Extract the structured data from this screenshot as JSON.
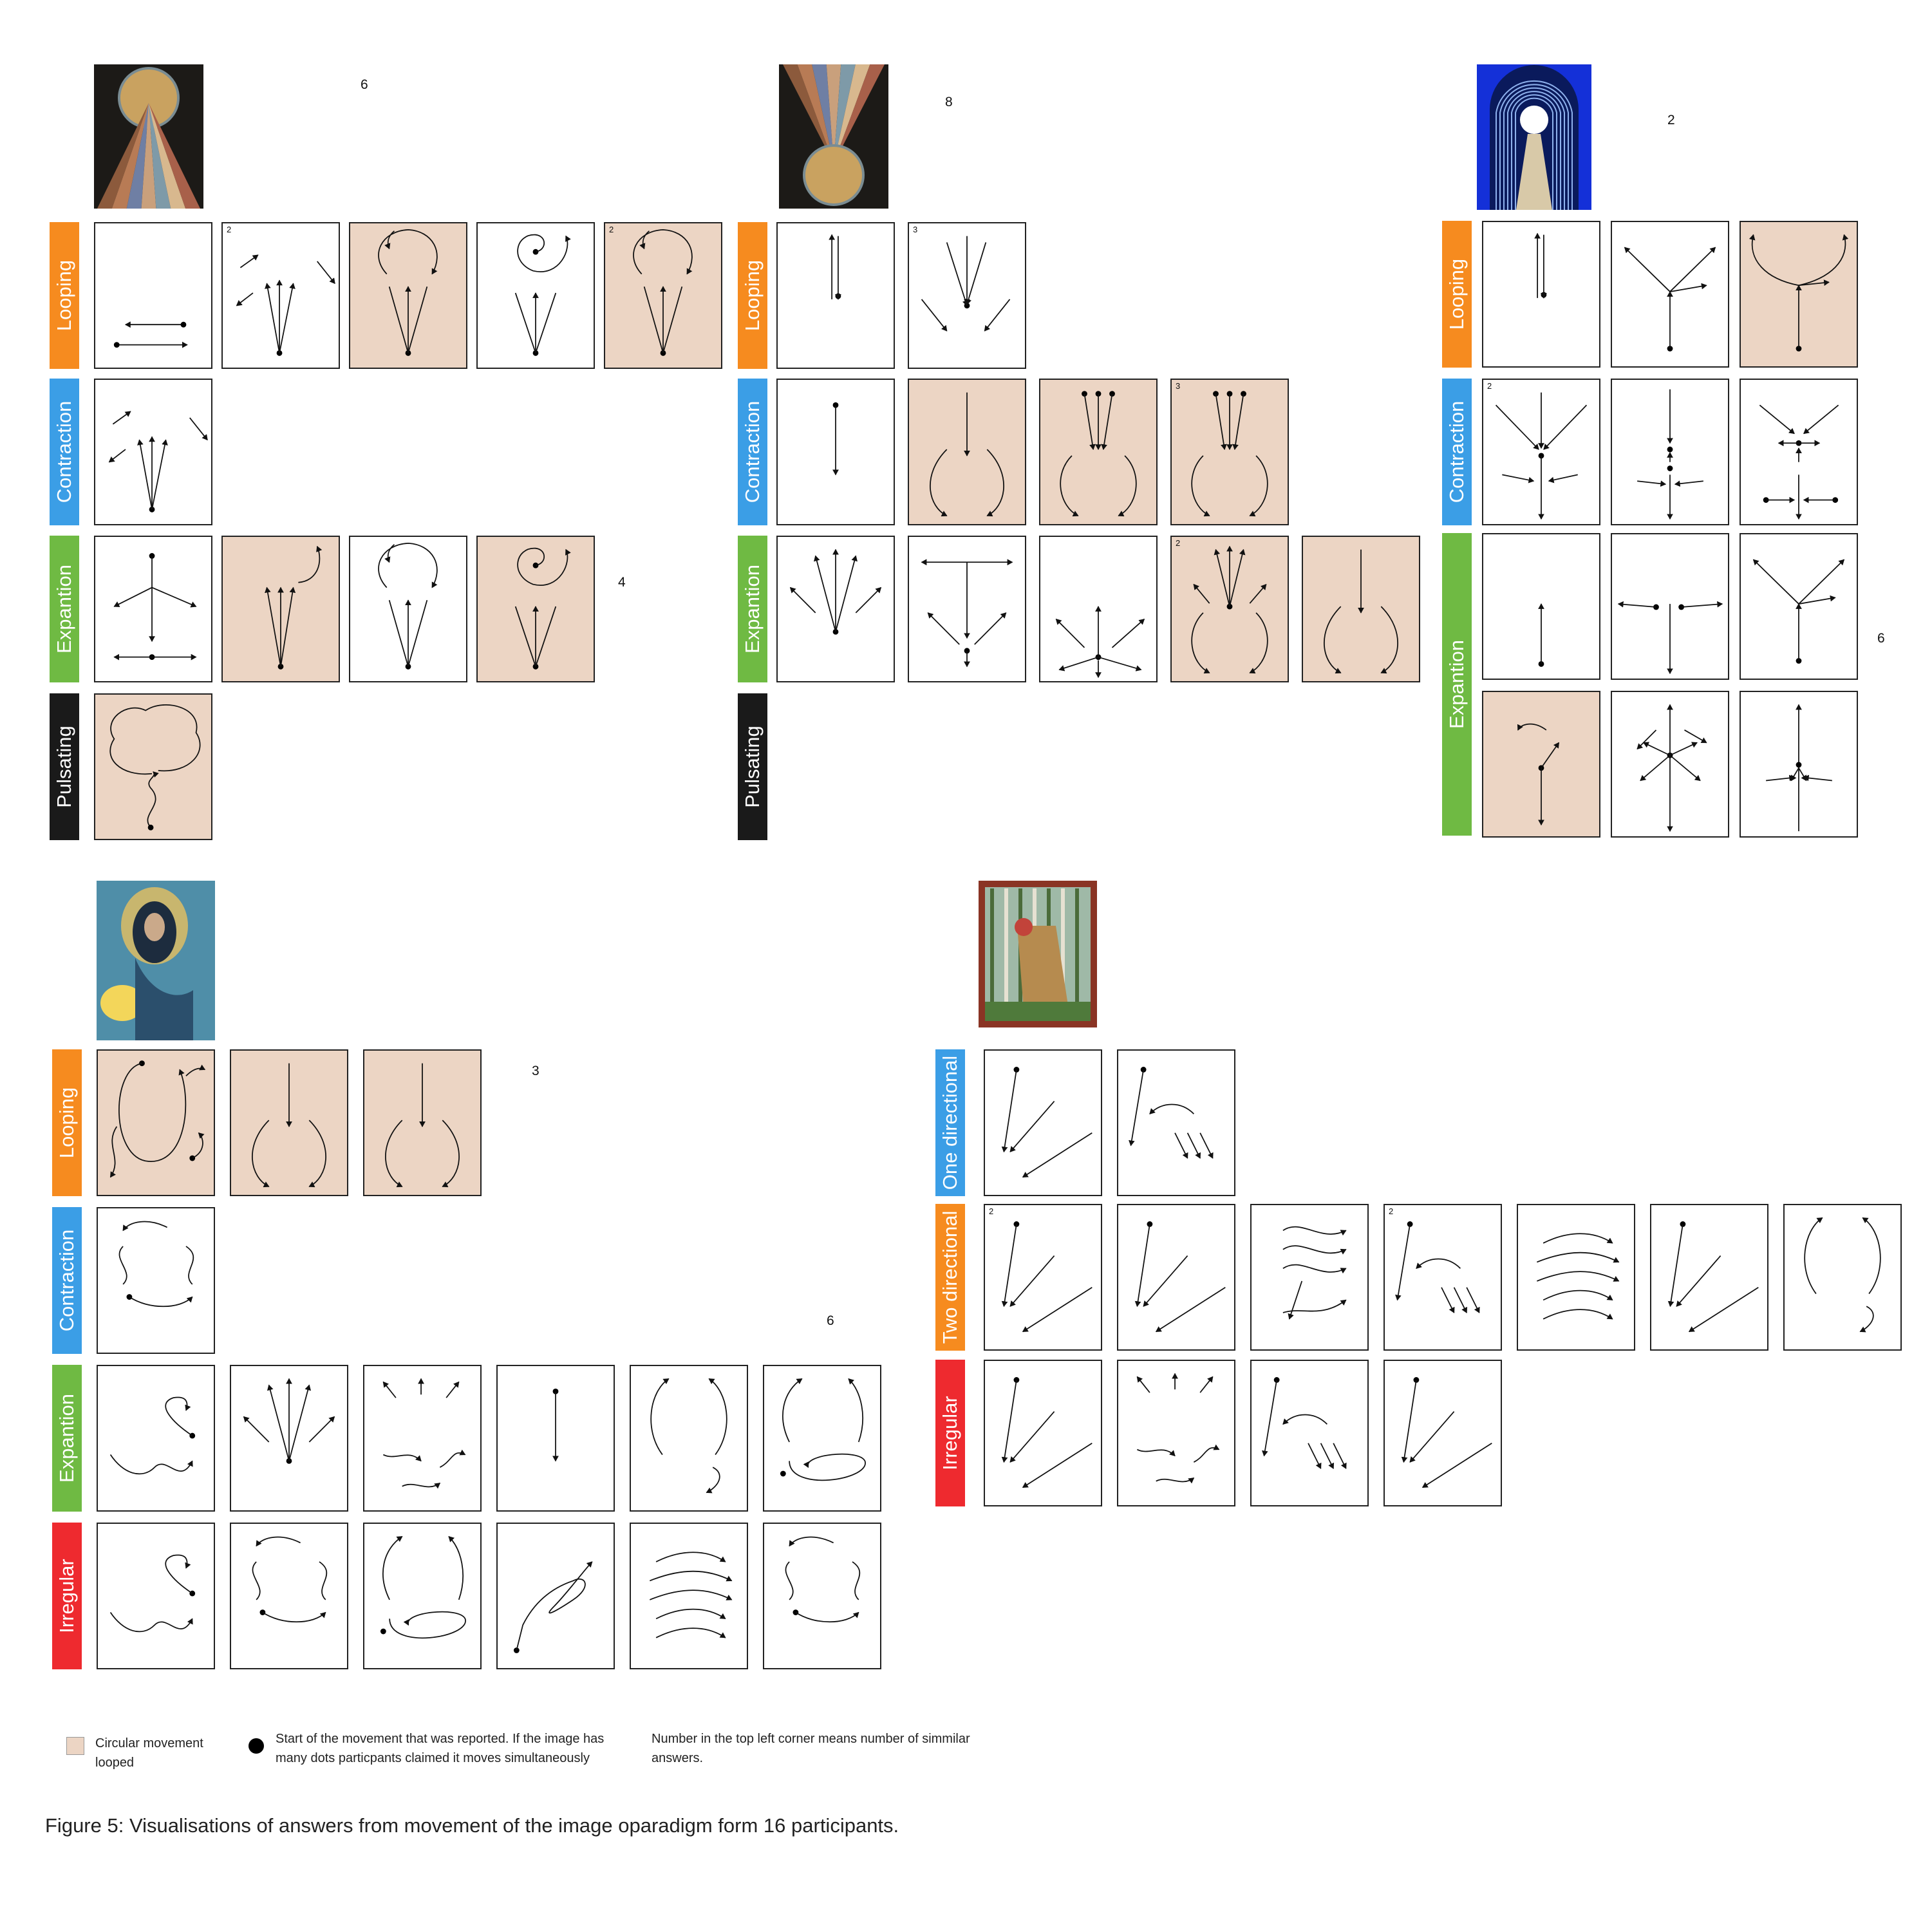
{
  "colors": {
    "Looping": "#f68b1f",
    "Contraction": "#3b9ee6",
    "Expantion": "#6fba43",
    "Pulsating": "#1a1a1a",
    "Irregular": "#ee2a2f",
    "One directional": "#3b9ee6",
    "Two directional": "#f68b1f",
    "looped_fill": "#ecd5c4"
  },
  "groups": [
    {
      "artwork": "pyramid-sun-painting",
      "count": "6",
      "rows": [
        {
          "label": "Looping",
          "cells": [
            {
              "glyph": "two-horizontal-arrows",
              "looped": false,
              "count": ""
            },
            {
              "glyph": "fan-up",
              "looped": false,
              "count": "2"
            },
            {
              "glyph": "fan-with-circle",
              "looped": true,
              "count": ""
            },
            {
              "glyph": "fan-with-spiral",
              "looped": false,
              "count": ""
            },
            {
              "glyph": "fan-with-circle",
              "looped": true,
              "count": "2"
            }
          ]
        },
        {
          "label": "Contraction",
          "cells": [
            {
              "glyph": "fan-up",
              "looped": false,
              "count": ""
            }
          ]
        },
        {
          "label": "Expantion",
          "cells": [
            {
              "glyph": "star-down",
              "looped": false,
              "count": ""
            },
            {
              "glyph": "fan-with-curve",
              "looped": true,
              "count": ""
            },
            {
              "glyph": "fan-with-circle",
              "looped": false,
              "count": ""
            },
            {
              "glyph": "fan-with-spiral",
              "looped": true,
              "count": ""
            }
          ]
        },
        {
          "label": "Pulsating",
          "cells": [
            {
              "glyph": "cloud-shape",
              "looped": true,
              "count": ""
            }
          ]
        }
      ],
      "extra_count": "4"
    },
    {
      "artwork": "inverted-pyramid-painting",
      "count": "8",
      "rows": [
        {
          "label": "Looping",
          "cells": [
            {
              "glyph": "double-vertical",
              "looped": false,
              "count": ""
            },
            {
              "glyph": "fan-down",
              "looped": false,
              "count": "3"
            }
          ]
        },
        {
          "label": "Contraction",
          "cells": [
            {
              "glyph": "single-down",
              "looped": false,
              "count": ""
            },
            {
              "glyph": "down-with-arcs",
              "looped": true,
              "count": ""
            },
            {
              "glyph": "triple-down-arcs",
              "looped": true,
              "count": ""
            },
            {
              "glyph": "triple-down-arcs",
              "looped": true,
              "count": "3"
            }
          ]
        },
        {
          "label": "Expantion",
          "cells": [
            {
              "glyph": "fan-out-up",
              "looped": false,
              "count": ""
            },
            {
              "glyph": "t-shape",
              "looped": false,
              "count": ""
            },
            {
              "glyph": "burst-bottom",
              "looped": false,
              "count": ""
            },
            {
              "glyph": "fan-out-arcs",
              "looped": true,
              "count": "2"
            },
            {
              "glyph": "down-with-arcs",
              "looped": true,
              "count": ""
            }
          ]
        },
        {
          "label": "Pulsating",
          "cells": []
        }
      ]
    },
    {
      "artwork": "tunnel-painting",
      "count": "2",
      "rows": [
        {
          "label": "Looping",
          "cells": [
            {
              "glyph": "double-vertical",
              "looped": false,
              "count": ""
            },
            {
              "glyph": "y-fork",
              "looped": false,
              "count": ""
            },
            {
              "glyph": "y-fork-loops",
              "looped": true,
              "count": ""
            }
          ]
        },
        {
          "label": "Contraction",
          "cells": [
            {
              "glyph": "y-converge",
              "looped": false,
              "count": "2"
            },
            {
              "glyph": "vertical-dots",
              "looped": false,
              "count": ""
            },
            {
              "glyph": "cross-converge",
              "looped": false,
              "count": ""
            }
          ]
        },
        {
          "label": "Expantion",
          "cells": [
            {
              "glyph": "single-up",
              "looped": false,
              "count": ""
            },
            {
              "glyph": "t-horizontal",
              "looped": false,
              "count": ""
            },
            {
              "glyph": "y-fork",
              "looped": false,
              "count": ""
            },
            {
              "glyph": "hook-up",
              "looped": true,
              "count": ""
            },
            {
              "glyph": "cross-spread",
              "looped": false,
              "count": ""
            },
            {
              "glyph": "spike-up",
              "looped": false,
              "count": ""
            }
          ]
        }
      ],
      "extra_count": "6"
    },
    {
      "artwork": "madonna-painting",
      "count": "3",
      "rows": [
        {
          "label": "Looping",
          "cells": [
            {
              "glyph": "big-loop",
              "looped": true,
              "count": ""
            },
            {
              "glyph": "down-with-arcs",
              "looped": true,
              "count": ""
            },
            {
              "glyph": "down-with-arcs",
              "looped": true,
              "count": ""
            }
          ]
        },
        {
          "label": "Contraction",
          "cells": [
            {
              "glyph": "wavy-arcs",
              "looped": false,
              "count": ""
            }
          ]
        },
        {
          "label": "Expantion",
          "cells": [
            {
              "glyph": "squiggle",
              "looped": false,
              "count": ""
            },
            {
              "glyph": "fan-out-up",
              "looped": false,
              "count": ""
            },
            {
              "glyph": "scatter",
              "looped": false,
              "count": ""
            },
            {
              "glyph": "single-down",
              "looped": false,
              "count": ""
            },
            {
              "glyph": "arc-pair",
              "looped": false,
              "count": ""
            },
            {
              "glyph": "loop-sweep",
              "looped": false,
              "count": ""
            }
          ]
        },
        {
          "label": "Irregular",
          "cells": [
            {
              "glyph": "squiggle",
              "looped": false,
              "count": ""
            },
            {
              "glyph": "wavy-arcs",
              "looped": false,
              "count": ""
            },
            {
              "glyph": "loop-sweep",
              "looped": false,
              "count": ""
            },
            {
              "glyph": "scribble",
              "looped": false,
              "count": ""
            },
            {
              "glyph": "parallel-arcs",
              "looped": false,
              "count": ""
            },
            {
              "glyph": "wavy-arcs",
              "looped": false,
              "count": ""
            }
          ]
        }
      ],
      "extra_count": "6"
    },
    {
      "artwork": "forest-painting",
      "count": "",
      "rows": [
        {
          "label": "One directional",
          "cells": [
            {
              "glyph": "diagonal-fan",
              "looped": false,
              "count": ""
            },
            {
              "glyph": "diagonal-small",
              "looped": false,
              "count": ""
            }
          ]
        },
        {
          "label": "Two directional",
          "cells": [
            {
              "glyph": "diagonal-fan",
              "looped": false,
              "count": "2"
            },
            {
              "glyph": "diagonal-fan",
              "looped": false,
              "count": ""
            },
            {
              "glyph": "wave-lines",
              "looped": false,
              "count": ""
            },
            {
              "glyph": "diagonal-small",
              "looped": false,
              "count": "2"
            },
            {
              "glyph": "parallel-arcs",
              "looped": false,
              "count": ""
            },
            {
              "glyph": "diagonal-fan",
              "looped": false,
              "count": ""
            },
            {
              "glyph": "arc-pair",
              "looped": false,
              "count": ""
            }
          ]
        },
        {
          "label": "Irregular",
          "cells": [
            {
              "glyph": "diagonal-fan",
              "looped": false,
              "count": ""
            },
            {
              "glyph": "scatter",
              "looped": false,
              "count": ""
            },
            {
              "glyph": "diagonal-small",
              "looped": false,
              "count": ""
            },
            {
              "glyph": "diagonal-fan",
              "looped": false,
              "count": ""
            }
          ]
        }
      ]
    }
  ],
  "legend": {
    "looped_line1": "Circular movement",
    "looped_line2": "looped",
    "dot_line1": "Start of the movement that was reported. If the image has",
    "dot_line2": "many dots particpants claimed it moves simultaneously",
    "number_line1": "Number in the top left corner means number of simmilar",
    "number_line2": "answers."
  },
  "caption": "Figure 5: Visualisations of answers from movement of the image oparadigm form 16 participants."
}
